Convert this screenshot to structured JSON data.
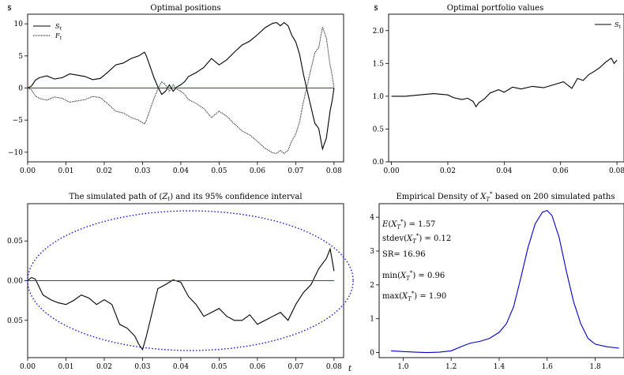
{
  "chart_data": [
    {
      "type": "line",
      "title": "Optimal positions",
      "ylabel": "$",
      "xlabel": "",
      "xlim": [
        0,
        0.0825
      ],
      "ylim": [
        -11.5,
        11.5
      ],
      "xticks": [
        0.0,
        0.01,
        0.02,
        0.03,
        0.04,
        0.05,
        0.06,
        0.07,
        0.08
      ],
      "xtick_labels": [
        "0.00",
        "0.01",
        "0.02",
        "0.03",
        "0.04",
        "0.05",
        "0.06",
        "0.07",
        "0.08"
      ],
      "yticks": [
        -10,
        -5,
        0,
        5,
        10
      ],
      "ytick_labels": [
        "−10",
        "−5",
        "0",
        "5",
        "10"
      ],
      "legend": {
        "position": "top-left",
        "entries": [
          "S_t",
          "F_t"
        ]
      },
      "series": [
        {
          "name": "S_t",
          "color": "#000000",
          "style": "solid",
          "x": [
            0,
            0.001,
            0.002,
            0.003,
            0.005,
            0.007,
            0.009,
            0.011,
            0.013,
            0.015,
            0.017,
            0.019,
            0.021,
            0.023,
            0.025,
            0.027,
            0.029,
            0.0305,
            0.031,
            0.032,
            0.033,
            0.034,
            0.035,
            0.036,
            0.037,
            0.038,
            0.039,
            0.04,
            0.041,
            0.042,
            0.044,
            0.046,
            0.048,
            0.05,
            0.052,
            0.054,
            0.056,
            0.058,
            0.06,
            0.062,
            0.064,
            0.065,
            0.066,
            0.067,
            0.068,
            0.069,
            0.07,
            0.071,
            0.072,
            0.073,
            0.074,
            0.075,
            0.076,
            0.077,
            0.078,
            0.079,
            0.0795,
            0.08
          ],
          "y": [
            0,
            0.3,
            1.2,
            1.6,
            1.9,
            1.4,
            1.6,
            2.2,
            2.0,
            1.8,
            1.3,
            1.5,
            2.5,
            3.6,
            3.9,
            4.6,
            5.0,
            5.6,
            5.0,
            3.3,
            1.6,
            0.2,
            -1.0,
            -0.5,
            0.5,
            -0.5,
            0.2,
            0.5,
            1.0,
            1.8,
            2.4,
            3.2,
            4.6,
            3.6,
            4.4,
            5.6,
            6.7,
            7.3,
            8.3,
            9.4,
            10.1,
            10.2,
            9.7,
            10.2,
            9.7,
            8.2,
            7.2,
            5.3,
            2.2,
            -0.4,
            -3.0,
            -5.5,
            -6.3,
            -9.5,
            -7.8,
            -3.5,
            -2.0,
            0
          ]
        },
        {
          "name": "F_t",
          "color": "#000000",
          "style": "dotted",
          "x": [
            0,
            0.001,
            0.002,
            0.003,
            0.005,
            0.007,
            0.009,
            0.011,
            0.013,
            0.015,
            0.017,
            0.019,
            0.021,
            0.023,
            0.025,
            0.027,
            0.029,
            0.0305,
            0.031,
            0.032,
            0.033,
            0.034,
            0.035,
            0.036,
            0.037,
            0.038,
            0.039,
            0.04,
            0.041,
            0.042,
            0.044,
            0.046,
            0.048,
            0.05,
            0.052,
            0.054,
            0.056,
            0.058,
            0.06,
            0.062,
            0.064,
            0.065,
            0.066,
            0.067,
            0.068,
            0.069,
            0.07,
            0.071,
            0.072,
            0.073,
            0.074,
            0.075,
            0.076,
            0.077,
            0.078,
            0.079,
            0.0795,
            0.08
          ],
          "y": [
            0,
            -0.3,
            -1.2,
            -1.6,
            -1.9,
            -1.4,
            -1.6,
            -2.2,
            -2.0,
            -1.8,
            -1.3,
            -1.5,
            -2.5,
            -3.6,
            -3.9,
            -4.6,
            -5.0,
            -5.6,
            -5.0,
            -3.3,
            -1.6,
            -0.2,
            1.0,
            0.5,
            -0.5,
            0.5,
            -0.2,
            -0.5,
            -1.0,
            -1.8,
            -2.4,
            -3.2,
            -4.6,
            -3.6,
            -4.4,
            -5.6,
            -6.7,
            -7.3,
            -8.3,
            -9.4,
            -10.1,
            -10.2,
            -9.7,
            -10.2,
            -9.7,
            -8.2,
            -7.2,
            -5.3,
            -2.2,
            0.4,
            3.0,
            5.5,
            6.3,
            9.5,
            7.8,
            3.5,
            2.0,
            0
          ]
        },
        {
          "name": "",
          "color": "#e00000",
          "style": "solid",
          "x": [
            0,
            0.08
          ],
          "y": [
            0,
            0
          ]
        }
      ]
    },
    {
      "type": "line",
      "title": "Optimal portfolio values",
      "ylabel": "$",
      "xlabel": "",
      "xlim": [
        -0.001,
        0.0825
      ],
      "ylim": [
        0.0,
        2.25
      ],
      "xticks": [
        0.0,
        0.02,
        0.04,
        0.06,
        0.08
      ],
      "xtick_labels": [
        "0.00",
        "0.02",
        "0.04",
        "0.06",
        "0.08"
      ],
      "yticks": [
        0.0,
        0.5,
        1.0,
        1.5,
        2.0
      ],
      "ytick_labels": [
        "0.0",
        "0.5",
        "1.0",
        "1.5",
        "2.0"
      ],
      "legend": {
        "position": "top-right",
        "entries": [
          "S_t"
        ]
      },
      "series": [
        {
          "name": "S_t",
          "color": "#000000",
          "style": "solid",
          "x": [
            0,
            0.005,
            0.01,
            0.015,
            0.02,
            0.022,
            0.025,
            0.027,
            0.029,
            0.03,
            0.031,
            0.033,
            0.035,
            0.038,
            0.04,
            0.043,
            0.046,
            0.05,
            0.054,
            0.058,
            0.061,
            0.064,
            0.066,
            0.068,
            0.07,
            0.072,
            0.074,
            0.076,
            0.078,
            0.079,
            0.08
          ],
          "y": [
            1.0,
            1.0,
            1.02,
            1.04,
            1.02,
            0.98,
            0.95,
            0.97,
            0.92,
            0.84,
            0.9,
            0.96,
            1.05,
            1.1,
            1.06,
            1.14,
            1.11,
            1.15,
            1.13,
            1.18,
            1.22,
            1.12,
            1.27,
            1.24,
            1.33,
            1.38,
            1.44,
            1.52,
            1.58,
            1.5,
            1.55
          ]
        }
      ]
    },
    {
      "type": "line",
      "title": "The simulated path of (Z_t) and its 95% confidence interval",
      "xlabel": "t",
      "ylabel": "",
      "xlim": [
        0,
        0.0825
      ],
      "ylim": [
        -0.097,
        0.097
      ],
      "xticks": [
        0.0,
        0.01,
        0.02,
        0.03,
        0.04,
        0.05,
        0.06,
        0.07,
        0.08
      ],
      "xtick_labels": [
        "0.00",
        "0.01",
        "0.02",
        "0.03",
        "0.04",
        "0.05",
        "0.06",
        "0.07",
        "0.08"
      ],
      "yticks": [
        -0.05,
        0.0,
        0.05
      ],
      "ytick_labels": [
        "0.05",
        "0.00",
        "0.05"
      ],
      "series": [
        {
          "name": "Z_t",
          "color": "#000000",
          "style": "solid",
          "x": [
            0,
            0.001,
            0.002,
            0.004,
            0.006,
            0.008,
            0.01,
            0.012,
            0.014,
            0.016,
            0.018,
            0.02,
            0.022,
            0.024,
            0.026,
            0.028,
            0.029,
            0.03,
            0.031,
            0.032,
            0.034,
            0.036,
            0.038,
            0.04,
            0.042,
            0.044,
            0.046,
            0.048,
            0.05,
            0.052,
            0.054,
            0.056,
            0.058,
            0.06,
            0.062,
            0.064,
            0.066,
            0.068,
            0.07,
            0.072,
            0.074,
            0.076,
            0.078,
            0.079,
            0.08
          ],
          "y": [
            0,
            0.004,
            0.002,
            -0.018,
            -0.024,
            -0.028,
            -0.03,
            -0.025,
            -0.018,
            -0.022,
            -0.03,
            -0.024,
            -0.03,
            -0.055,
            -0.06,
            -0.07,
            -0.08,
            -0.087,
            -0.07,
            -0.05,
            -0.01,
            -0.005,
            0.001,
            -0.002,
            -0.02,
            -0.03,
            -0.045,
            -0.04,
            -0.035,
            -0.045,
            -0.05,
            -0.05,
            -0.043,
            -0.055,
            -0.05,
            -0.045,
            -0.04,
            -0.05,
            -0.03,
            -0.015,
            -0.005,
            0.015,
            0.028,
            0.04,
            0.012
          ]
        },
        {
          "name": "95% confidence interval",
          "color": "#0000dd",
          "style": "dotted",
          "shape": "ellipse",
          "center": [
            0.0425,
            0.0
          ],
          "half_width": 0.0425,
          "half_height": 0.088,
          "upper_at_end": 0.04,
          "lower_at_end": -0.04
        },
        {
          "name": "",
          "color": "#e00000",
          "style": "solid",
          "x": [
            0,
            0.08
          ],
          "y": [
            0,
            0
          ]
        }
      ]
    },
    {
      "type": "line",
      "title": "Empirical Density of X_T^* based on 200 simulated paths",
      "xlabel": "",
      "ylabel": "",
      "xlim": [
        0.9,
        1.92
      ],
      "ylim": [
        -0.15,
        4.4
      ],
      "xticks": [
        1.0,
        1.2,
        1.4,
        1.6,
        1.8
      ],
      "xtick_labels": [
        "1.0",
        "1.2",
        "1.4",
        "1.6",
        "1.8"
      ],
      "yticks": [
        0,
        1,
        2,
        3,
        4
      ],
      "ytick_labels": [
        "0",
        "1",
        "2",
        "3",
        "4"
      ],
      "annotations": [
        "E(X_T^*) = 1.57",
        "stdev(X_T^*) = 0.12",
        "SR= 16.96",
        "min(X_T^*) = 0.96",
        "max(X_T^*) = 1.90"
      ],
      "series": [
        {
          "name": "",
          "color": "#0000cc",
          "style": "solid",
          "x": [
            0.95,
            1.0,
            1.05,
            1.1,
            1.15,
            1.2,
            1.25,
            1.28,
            1.32,
            1.36,
            1.4,
            1.43,
            1.46,
            1.49,
            1.52,
            1.55,
            1.58,
            1.6,
            1.62,
            1.65,
            1.68,
            1.71,
            1.74,
            1.77,
            1.8,
            1.85,
            1.9
          ],
          "y": [
            0.05,
            0.03,
            0.01,
            0.0,
            0.01,
            0.05,
            0.2,
            0.28,
            0.33,
            0.42,
            0.6,
            0.85,
            1.35,
            2.2,
            3.1,
            3.8,
            4.15,
            4.2,
            4.05,
            3.4,
            2.4,
            1.5,
            0.85,
            0.42,
            0.25,
            0.17,
            0.13
          ]
        }
      ]
    }
  ]
}
